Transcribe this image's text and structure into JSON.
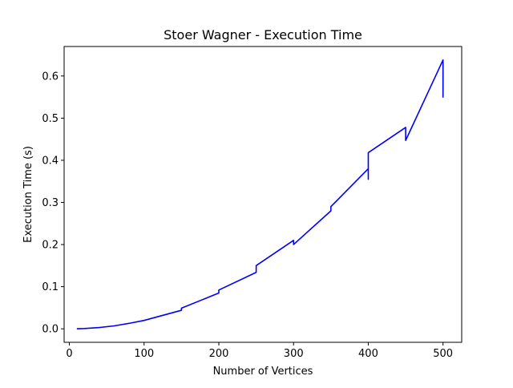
{
  "chart_data": {
    "type": "line",
    "title": "Stoer Wagner - Execution Time",
    "xlabel": "Number of Vertices",
    "ylabel": "Execution Time (s)",
    "xlim": [
      -7,
      525
    ],
    "ylim": [
      -0.032,
      0.67
    ],
    "xticks": [
      0,
      100,
      200,
      300,
      400,
      500
    ],
    "yticks": [
      0.0,
      0.1,
      0.2,
      0.3,
      0.4,
      0.5,
      0.6
    ],
    "ytick_labels": [
      "0.0",
      "0.1",
      "0.2",
      "0.3",
      "0.4",
      "0.5",
      "0.6"
    ],
    "grid": false,
    "series": [
      {
        "color": "#0000ff",
        "x": [
          10,
          20,
          40,
          60,
          80,
          100,
          150,
          150,
          200,
          200,
          250,
          250,
          300,
          300,
          350,
          350,
          400,
          400,
          400,
          450,
          450,
          500,
          500,
          500
        ],
        "y": [
          0.0003,
          0.0007,
          0.003,
          0.007,
          0.013,
          0.02,
          0.044,
          0.049,
          0.085,
          0.092,
          0.134,
          0.15,
          0.21,
          0.2,
          0.28,
          0.29,
          0.38,
          0.355,
          0.418,
          0.478,
          0.447,
          0.638,
          0.55,
          0.6
        ]
      }
    ]
  }
}
